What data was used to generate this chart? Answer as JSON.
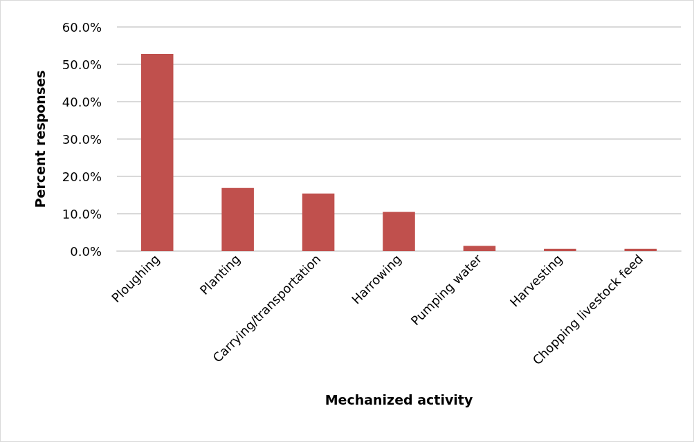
{
  "chart_data": {
    "type": "bar",
    "xlabel": "Mechanized activity",
    "ylabel": "Percent responses",
    "categories": [
      "Ploughing",
      "Planting",
      "Carrying/transportation",
      "Harrowing",
      "Pumping water",
      "Harvesting",
      "Chopping livestock feed"
    ],
    "values": [
      52.8,
      16.9,
      15.4,
      10.5,
      1.4,
      0.6,
      0.6
    ],
    "color": "#c0504d",
    "ylim": [
      0,
      60
    ],
    "yticks": [
      {
        "value": 0,
        "label": "0.0%"
      },
      {
        "value": 10,
        "label": "10.0%"
      },
      {
        "value": 20,
        "label": "20.0%"
      },
      {
        "value": 30,
        "label": "30.0%"
      },
      {
        "value": 40,
        "label": "40.0%"
      },
      {
        "value": 50,
        "label": "50.0%"
      },
      {
        "value": 60,
        "label": "60.0%"
      }
    ],
    "grid": "y"
  }
}
